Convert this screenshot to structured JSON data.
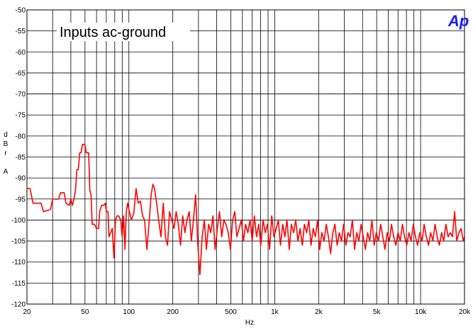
{
  "chart_data": {
    "type": "line",
    "title": "Inputs ac-ground",
    "logo": "Ap",
    "xlabel": "Hz",
    "ylabel_letters": [
      "d",
      "B",
      "r",
      "",
      "A"
    ],
    "x_scale": "log",
    "xlim": [
      20,
      20000
    ],
    "ylim": [
      -120,
      -50
    ],
    "grid": true,
    "x_ticks": [
      {
        "value": 20,
        "label": "20"
      },
      {
        "value": 50,
        "label": "50"
      },
      {
        "value": 100,
        "label": "100"
      },
      {
        "value": 200,
        "label": "200"
      },
      {
        "value": 500,
        "label": "500"
      },
      {
        "value": 1000,
        "label": "1k"
      },
      {
        "value": 2000,
        "label": "2k"
      },
      {
        "value": 5000,
        "label": "5k"
      },
      {
        "value": 10000,
        "label": "10k"
      },
      {
        "value": 20000,
        "label": "20k"
      }
    ],
    "y_ticks": [
      {
        "value": -50,
        "label": "-50"
      },
      {
        "value": -55,
        "label": "-55"
      },
      {
        "value": -60,
        "label": "-60"
      },
      {
        "value": -65,
        "label": "-65"
      },
      {
        "value": -70,
        "label": "-70"
      },
      {
        "value": -75,
        "label": "-75"
      },
      {
        "value": -80,
        "label": "-80"
      },
      {
        "value": -85,
        "label": "-85"
      },
      {
        "value": -90,
        "label": "-90"
      },
      {
        "value": -95,
        "label": "-95"
      },
      {
        "value": -100,
        "label": "-100"
      },
      {
        "value": -105,
        "label": "-105"
      },
      {
        "value": -110,
        "label": "-110"
      },
      {
        "value": -115,
        "label": "-115"
      },
      {
        "value": -120,
        "label": "-120"
      }
    ],
    "series": [
      {
        "color": "#ff0000",
        "points": [
          [
            20,
            -92.5
          ],
          [
            21,
            -92.5
          ],
          [
            22,
            -96
          ],
          [
            25,
            -96
          ],
          [
            26,
            -98
          ],
          [
            29,
            -97.5
          ],
          [
            30,
            -95
          ],
          [
            33,
            -95
          ],
          [
            34,
            -93.5
          ],
          [
            36,
            -93.5
          ],
          [
            37,
            -96
          ],
          [
            39,
            -96.5
          ],
          [
            40,
            -95
          ],
          [
            41,
            -96.5
          ],
          [
            42,
            -95
          ],
          [
            43,
            -93
          ],
          [
            44,
            -88
          ],
          [
            45,
            -88
          ],
          [
            46,
            -84
          ],
          [
            47,
            -84
          ],
          [
            48,
            -82
          ],
          [
            50,
            -82
          ],
          [
            51,
            -84
          ],
          [
            53,
            -84
          ],
          [
            54,
            -93
          ],
          [
            55,
            -94
          ],
          [
            56,
            -101
          ],
          [
            58,
            -101
          ],
          [
            60,
            -102
          ],
          [
            62,
            -102
          ],
          [
            63,
            -98
          ],
          [
            65,
            -96.5
          ],
          [
            67,
            -96.5
          ],
          [
            69,
            -96
          ],
          [
            70,
            -98
          ],
          [
            72,
            -98
          ],
          [
            73,
            -104
          ],
          [
            75,
            -103
          ],
          [
            77,
            -102
          ],
          [
            79,
            -109
          ],
          [
            81,
            -100
          ],
          [
            83,
            -99
          ],
          [
            85,
            -99
          ],
          [
            88,
            -100
          ],
          [
            90,
            -104
          ],
          [
            92,
            -99
          ],
          [
            94,
            -107
          ],
          [
            96,
            -98
          ],
          [
            98,
            -96
          ],
          [
            100,
            -97.5
          ],
          [
            104,
            -100
          ],
          [
            108,
            -98.5
          ],
          [
            112,
            -92.5
          ],
          [
            116,
            -96
          ],
          [
            120,
            -95.5
          ],
          [
            124,
            -99
          ],
          [
            128,
            -100
          ],
          [
            133,
            -107
          ],
          [
            138,
            -100
          ],
          [
            142,
            -94
          ],
          [
            146,
            -91.5
          ],
          [
            150,
            -92.5
          ],
          [
            155,
            -96
          ],
          [
            160,
            -100
          ],
          [
            166,
            -104
          ],
          [
            172,
            -96
          ],
          [
            178,
            -104
          ],
          [
            184,
            -106
          ],
          [
            190,
            -98
          ],
          [
            197,
            -100
          ],
          [
            204,
            -102
          ],
          [
            211,
            -98
          ],
          [
            218,
            -101
          ],
          [
            226,
            -106
          ],
          [
            234,
            -99
          ],
          [
            242,
            -103
          ],
          [
            250,
            -100
          ],
          [
            259,
            -98
          ],
          [
            268,
            -105
          ],
          [
            277,
            -100
          ],
          [
            287,
            -94
          ],
          [
            297,
            -106
          ],
          [
            307,
            -113
          ],
          [
            318,
            -104
          ],
          [
            329,
            -100
          ],
          [
            340,
            -107
          ],
          [
            352,
            -101
          ],
          [
            364,
            -103
          ],
          [
            377,
            -99
          ],
          [
            390,
            -107
          ],
          [
            404,
            -102
          ],
          [
            418,
            -98
          ],
          [
            433,
            -104
          ],
          [
            448,
            -100
          ],
          [
            463,
            -101
          ],
          [
            480,
            -103
          ],
          [
            497,
            -107
          ],
          [
            514,
            -100
          ],
          [
            532,
            -98
          ],
          [
            550,
            -104
          ],
          [
            570,
            -102
          ],
          [
            590,
            -100
          ],
          [
            610,
            -105
          ],
          [
            632,
            -101
          ],
          [
            654,
            -103
          ],
          [
            677,
            -100
          ],
          [
            700,
            -105
          ],
          [
            725,
            -99
          ],
          [
            750,
            -104
          ],
          [
            776,
            -101
          ],
          [
            803,
            -106
          ],
          [
            832,
            -100
          ],
          [
            861,
            -103
          ],
          [
            891,
            -101
          ],
          [
            922,
            -107
          ],
          [
            954,
            -99
          ],
          [
            988,
            -104
          ],
          [
            1023,
            -102
          ],
          [
            1058,
            -100
          ],
          [
            1095,
            -106
          ],
          [
            1134,
            -101
          ],
          [
            1173,
            -104
          ],
          [
            1214,
            -100
          ],
          [
            1257,
            -107
          ],
          [
            1301,
            -101
          ],
          [
            1346,
            -103
          ],
          [
            1393,
            -100
          ],
          [
            1442,
            -105
          ],
          [
            1493,
            -102
          ],
          [
            1545,
            -106
          ],
          [
            1599,
            -101
          ],
          [
            1655,
            -103
          ],
          [
            1713,
            -100
          ],
          [
            1773,
            -106
          ],
          [
            1835,
            -102
          ],
          [
            1899,
            -104
          ],
          [
            1965,
            -100
          ],
          [
            2034,
            -107
          ],
          [
            2105,
            -103
          ],
          [
            2179,
            -105
          ],
          [
            2255,
            -101
          ],
          [
            2334,
            -104
          ],
          [
            2415,
            -108
          ],
          [
            2500,
            -103
          ],
          [
            2587,
            -101
          ],
          [
            2678,
            -106
          ],
          [
            2771,
            -103
          ],
          [
            2868,
            -105
          ],
          [
            2968,
            -101
          ],
          [
            3072,
            -106
          ],
          [
            3180,
            -103
          ],
          [
            3291,
            -104
          ],
          [
            3406,
            -100
          ],
          [
            3525,
            -107
          ],
          [
            3648,
            -103
          ],
          [
            3776,
            -105
          ],
          [
            3908,
            -101
          ],
          [
            4044,
            -104
          ],
          [
            4186,
            -107
          ],
          [
            4332,
            -103
          ],
          [
            4483,
            -105
          ],
          [
            4640,
            -100
          ],
          [
            4802,
            -106
          ],
          [
            4970,
            -103
          ],
          [
            5144,
            -105
          ],
          [
            5323,
            -101
          ],
          [
            5510,
            -104
          ],
          [
            5702,
            -107
          ],
          [
            5901,
            -103
          ],
          [
            6108,
            -105
          ],
          [
            6321,
            -101
          ],
          [
            6542,
            -104
          ],
          [
            6770,
            -106
          ],
          [
            7007,
            -103
          ],
          [
            7252,
            -105
          ],
          [
            7505,
            -101
          ],
          [
            7767,
            -104
          ],
          [
            8039,
            -106
          ],
          [
            8320,
            -103
          ],
          [
            8610,
            -105
          ],
          [
            8911,
            -101
          ],
          [
            9222,
            -104
          ],
          [
            9545,
            -106
          ],
          [
            9878,
            -103
          ],
          [
            10223,
            -105
          ],
          [
            10581,
            -101
          ],
          [
            10950,
            -104
          ],
          [
            11333,
            -106
          ],
          [
            11729,
            -103
          ],
          [
            12139,
            -105
          ],
          [
            12563,
            -101
          ],
          [
            13002,
            -104
          ],
          [
            13456,
            -106
          ],
          [
            13926,
            -103
          ],
          [
            14413,
            -105
          ],
          [
            14916,
            -101
          ],
          [
            15437,
            -104
          ],
          [
            15977,
            -103
          ],
          [
            16535,
            -104
          ],
          [
            17112,
            -98
          ],
          [
            17710,
            -105
          ],
          [
            18329,
            -103
          ],
          [
            18969,
            -102
          ],
          [
            19632,
            -105
          ],
          [
            20000,
            -104
          ]
        ]
      }
    ]
  }
}
